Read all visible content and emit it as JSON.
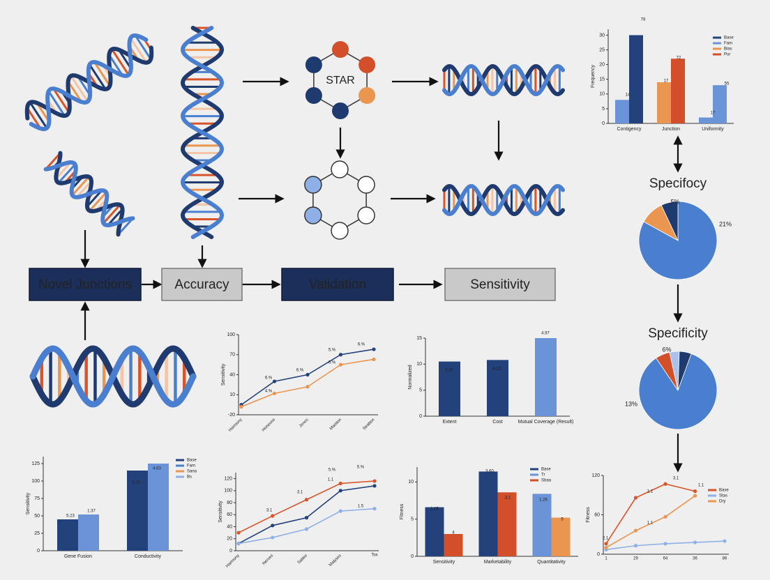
{
  "star_label": "STAR",
  "steps": [
    "Novel Junctions",
    "Accuracy",
    "Validation",
    "Sensitivity"
  ],
  "charts": [
    {
      "type": "bar",
      "ylabel": "Frequency",
      "ylim": [
        0,
        32
      ],
      "yticks": [
        0,
        5,
        10,
        15,
        20,
        25,
        30
      ],
      "groups": [
        {
          "label": "Contigency",
          "bars": [
            {
              "value": 8,
              "color": "#6b93d8"
            },
            {
              "value": 30,
              "color": "#23417a"
            }
          ]
        },
        {
          "label": "Junction",
          "bars": [
            {
              "value": 14,
              "color": "#ea9550"
            },
            {
              "value": 22,
              "color": "#d24f2a"
            }
          ]
        },
        {
          "label": "Uniformity",
          "bars": [
            {
              "value": 2,
              "color": "#6b93d8"
            },
            {
              "value": 13,
              "color": "#6b93d8"
            }
          ]
        }
      ],
      "legend": [
        {
          "name": "Base",
          "color": "#23417a"
        },
        {
          "name": "Fam",
          "color": "#6b93d8"
        },
        {
          "name": "Bias",
          "color": "#ea9550"
        },
        {
          "name": "Pur",
          "color": "#d24f2a"
        }
      ],
      "annotations": [
        "14",
        "78",
        "17",
        "72",
        "17",
        "55"
      ]
    },
    {
      "type": "pie",
      "title": "Specifocy",
      "values": [
        83,
        10,
        7
      ],
      "colors": [
        "#4a7fcf",
        "#ea9550",
        "#1f3a6e"
      ],
      "annotations": [
        "5%",
        "21%"
      ]
    },
    {
      "type": "pie",
      "title": "Specificity",
      "values": [
        85,
        6,
        4,
        5
      ],
      "colors": [
        "#4a7fcf",
        "#d24f2a",
        "#a9c1ec",
        "#1f3a6e"
      ],
      "annotations": [
        "6%",
        "13%"
      ]
    },
    {
      "type": "line",
      "ylabel": "Sensitivity",
      "ylim": [
        -20,
        100
      ],
      "yticks": [
        -20,
        10,
        40,
        70,
        100
      ],
      "categories": [
        "Harmony",
        "Honeons",
        "Jexco",
        "Maiston",
        "Stratton"
      ],
      "series": [
        {
          "color": "#23417a",
          "values": [
            -5,
            30,
            40,
            70,
            78
          ]
        },
        {
          "color": "#ea9550",
          "values": [
            -8,
            12,
            22,
            55,
            63
          ]
        }
      ],
      "annotations": [
        "6.%",
        "6.%",
        "5.%",
        "6.%",
        "4.%",
        "6.%"
      ]
    },
    {
      "type": "bar",
      "ylabel": "Normalized",
      "ylim": [
        0,
        15
      ],
      "yticks": [
        0,
        5,
        10,
        15
      ],
      "groups": [
        {
          "label": "Extent",
          "bars": [
            {
              "value": 10.5,
              "color": "#23417a"
            }
          ]
        },
        {
          "label": "Cost",
          "bars": [
            {
              "value": 10.8,
              "color": "#23417a"
            }
          ]
        },
        {
          "label": "Mutual Coverage (Result)",
          "bars": [
            {
              "value": 15,
              "color": "#6b93d8"
            }
          ]
        }
      ],
      "annotations": [
        "3.16",
        "4.23",
        "4.97"
      ]
    },
    {
      "type": "bar",
      "ylabel": "Sensitivity",
      "ylim": [
        0,
        135
      ],
      "yticks": [
        0,
        25,
        50,
        75,
        100,
        125
      ],
      "groups": [
        {
          "label": "Gene Fusion",
          "bars": [
            {
              "value": 45,
              "color": "#23417a"
            },
            {
              "value": 52,
              "color": "#6b93d8"
            }
          ]
        },
        {
          "label": "Conductivity",
          "bars": [
            {
              "value": 115,
              "color": "#23417a"
            },
            {
              "value": 125,
              "color": "#6b93d8"
            }
          ]
        }
      ],
      "legend": [
        {
          "name": "Base",
          "color": "#23417a"
        },
        {
          "name": "Fam",
          "color": "#4a7fcf"
        },
        {
          "name": "Sana",
          "color": "#ea9550"
        },
        {
          "name": "Bs",
          "color": "#8fb0e6"
        }
      ],
      "annotations": [
        "5.23",
        "1.37",
        "4.20",
        "4.63"
      ]
    },
    {
      "type": "line",
      "ylabel": "Sensitivity",
      "ylim": [
        0,
        130
      ],
      "yticks": [
        0,
        20,
        40,
        60,
        80,
        100,
        120
      ],
      "categories": [
        "Harmony",
        "Nerves",
        "Sattes",
        "Malyses",
        "Tox"
      ],
      "series": [
        {
          "color": "#d9542a",
          "values": [
            30,
            58,
            85,
            112,
            116
          ]
        },
        {
          "color": "#23417a",
          "values": [
            12,
            42,
            55,
            100,
            108
          ]
        },
        {
          "color": "#8fb0e6",
          "values": [
            12,
            22,
            36,
            66,
            70
          ]
        }
      ],
      "annotations": [
        "5.%",
        "5.%",
        "3.1",
        "3.1",
        "1.1",
        "1.5"
      ]
    },
    {
      "type": "bar",
      "ylabel": "Fitness",
      "ylim": [
        0,
        12
      ],
      "yticks": [
        0,
        5,
        10
      ],
      "groups": [
        {
          "label": "Sensitivity",
          "bars": [
            {
              "value": 6.6,
              "color": "#23417a"
            },
            {
              "value": 3,
              "color": "#d24f2a"
            }
          ]
        },
        {
          "label": "Marketability",
          "bars": [
            {
              "value": 11.4,
              "color": "#23417a"
            },
            {
              "value": 8.6,
              "color": "#d24f2a"
            }
          ]
        },
        {
          "label": "Quantitativity",
          "bars": [
            {
              "value": 8.4,
              "color": "#6b93d8"
            },
            {
              "value": 5.2,
              "color": "#ea9550"
            }
          ]
        }
      ],
      "legend": [
        {
          "name": "Base",
          "color": "#23417a"
        },
        {
          "name": "Tr",
          "color": "#6b93d8"
        },
        {
          "name": "Sbaa",
          "color": "#d24f2a"
        }
      ],
      "annotations": [
        "1.15",
        "4",
        "3.60",
        "3.1",
        "1.26",
        "5"
      ]
    },
    {
      "type": "line",
      "ylabel": "Fitness",
      "ylim": [
        0,
        120
      ],
      "yticks": [
        0,
        60,
        120
      ],
      "categories": [
        "1",
        "29",
        "64",
        "36",
        "86"
      ],
      "series": [
        {
          "name": "Base",
          "color": "#d9542a",
          "values": [
            16,
            86,
            107,
            96,
            null
          ]
        },
        {
          "name": "Stas",
          "color": "#8fb0e6",
          "values": [
            7,
            13,
            16,
            18,
            20
          ]
        },
        {
          "name": "Dry",
          "color": "#ea9550",
          "values": [
            10,
            36,
            57,
            89,
            null
          ]
        }
      ],
      "annotations": [
        "2.1",
        "1.1",
        "3.1",
        "1.1",
        "1.1"
      ]
    }
  ]
}
